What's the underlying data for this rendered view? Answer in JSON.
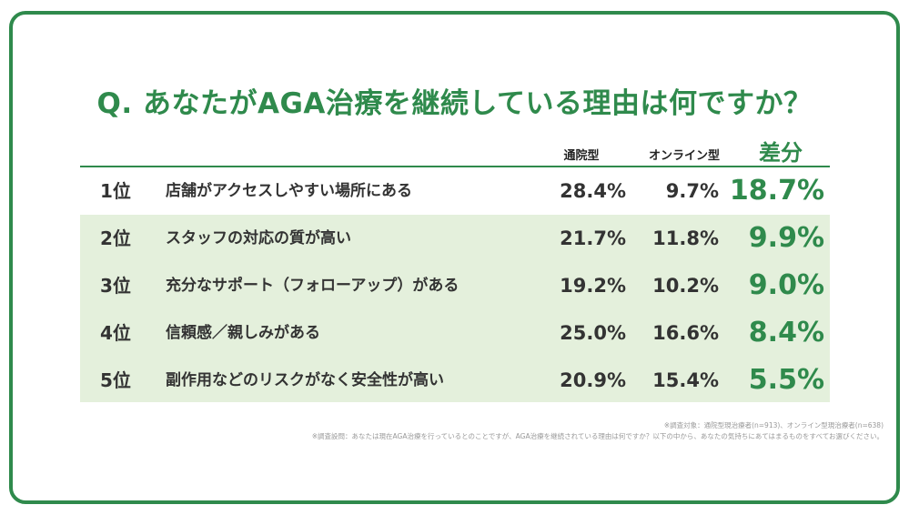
{
  "title": "Q. あなたがAGA治療を継続している理由は何ですか？",
  "chart_data": {
    "type": "table",
    "columns": [
      "通院型",
      "オンライン型",
      "差分"
    ],
    "rows": [
      {
        "rank": "1位",
        "reason": "店舗がアクセスしやすい場所にある",
        "clinic": "28.4%",
        "online": "9.7%",
        "diff": "18.7%"
      },
      {
        "rank": "2位",
        "reason": "スタッフの対応の質が高い",
        "clinic": "21.7%",
        "online": "11.8%",
        "diff": "9.9%"
      },
      {
        "rank": "3位",
        "reason": "充分なサポート（フォローアップ）がある",
        "clinic": "19.2%",
        "online": "10.2%",
        "diff": "9.0%"
      },
      {
        "rank": "4位",
        "reason": "信頼感／親しみがある",
        "clinic": "25.0%",
        "online": "16.6%",
        "diff": "8.4%"
      },
      {
        "rank": "5位",
        "reason": "副作用などのリスクがなく安全性が高い",
        "clinic": "20.9%",
        "online": "15.4%",
        "diff": "5.5%"
      }
    ]
  },
  "notes": {
    "target": "※調査対象：通院型現治療者(n=913)、オンライン型現治療者(n=638)",
    "question": "※調査設問：あなたは現在AGA治療を行っているとのことですが、AGA治療を継続されている理由は何ですか？以下の中から、あなたの気持ちにあてはまるものをすべてお選びください。"
  },
  "colors": {
    "accent": "#2f8a4c",
    "shade": "#e4f0dc"
  }
}
